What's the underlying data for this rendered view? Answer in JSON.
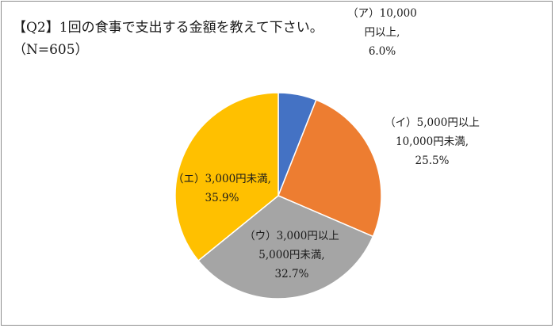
{
  "chart_data": {
    "type": "pie",
    "title": "【Q2】1回の食事で支出する金額を教えて下さい。",
    "subtitle": "（N=605）",
    "start_angle_deg": 0,
    "direction": "clockwise",
    "slices": [
      {
        "label": "（ア）10,000円以上",
        "value": 6.0,
        "value_text": "6.0%",
        "color": "#4472C4",
        "label_lines": [
          "（ア）10,000",
          "円以上,",
          "6.0%"
        ]
      },
      {
        "label": "（イ）5,000円以上10,000円未満",
        "value": 25.5,
        "value_text": "25.5%",
        "color": "#ED7D31",
        "label_lines": [
          "（イ）5,000円以上",
          "10,000円未満,",
          "25.5%"
        ]
      },
      {
        "label": "（ウ）3,000円以上5,000円未満",
        "value": 32.7,
        "value_text": "32.7%",
        "color": "#A5A5A5",
        "label_lines": [
          "（ウ）3,000円以上",
          "5,000円未満,",
          "32.7%"
        ]
      },
      {
        "label": "（エ）3,000円未満",
        "value": 35.9,
        "value_text": "35.9%",
        "color": "#FFC000",
        "label_lines": [
          "（エ）3,000円未満,",
          "35.9%"
        ]
      }
    ]
  }
}
